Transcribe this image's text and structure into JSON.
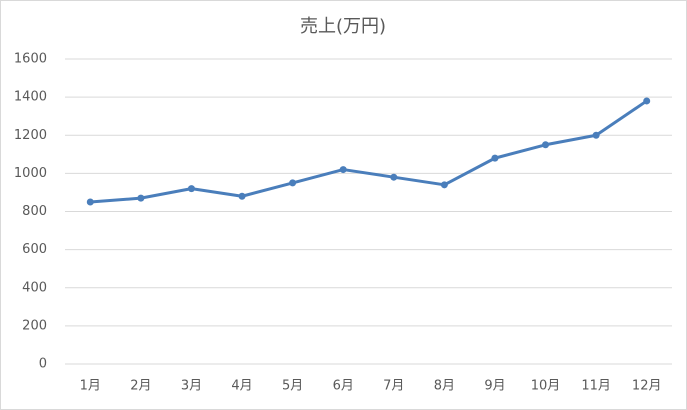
{
  "chart_data": {
    "type": "line",
    "title": "売上(万円)",
    "categories": [
      "1月",
      "2月",
      "3月",
      "4月",
      "5月",
      "6月",
      "7月",
      "8月",
      "9月",
      "10月",
      "11月",
      "12月"
    ],
    "values": [
      850,
      870,
      920,
      880,
      950,
      1020,
      980,
      940,
      1080,
      1150,
      1200,
      1380
    ],
    "color": "#4a7ebb",
    "ylim": [
      0,
      1600
    ],
    "yticks": [
      0,
      200,
      400,
      600,
      800,
      1000,
      1200,
      1400,
      1600
    ],
    "grid": true
  }
}
